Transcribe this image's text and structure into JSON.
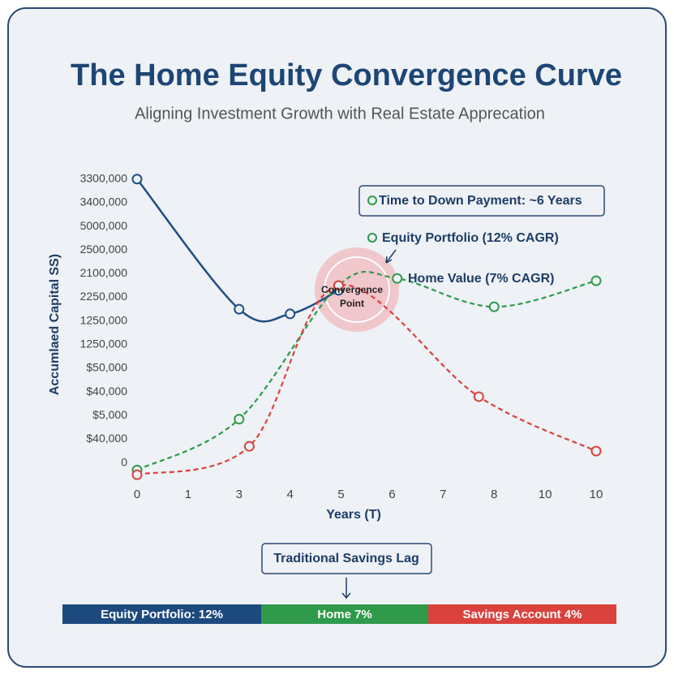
{
  "chart_data": {
    "type": "line",
    "title": "The Home Equity Convergence Curve",
    "subtitle": "Aligning Investment Growth with Real Estate Apprecation",
    "x_label": "Years (T)",
    "y_label": "Accumlaed Capital SS)",
    "xlim": [
      0,
      9
    ],
    "xticks": [
      0,
      1,
      {
        "value": 2,
        "label": "3"
      },
      {
        "value": 3,
        "label": "4"
      },
      {
        "value": 4,
        "label": "5"
      },
      {
        "value": 5,
        "label": "6"
      },
      {
        "value": 6,
        "label": "7"
      },
      {
        "value": 7,
        "label": "8"
      },
      {
        "value": 8,
        "label": "10"
      },
      {
        "value": 9,
        "label": "10"
      }
    ],
    "ylim": [
      -0.7,
      12.3
    ],
    "yticks": [
      0,
      {
        "value": 1,
        "label": "$40,000"
      },
      {
        "value": 2,
        "label": "$5,000"
      },
      {
        "value": 3,
        "label": "$40,000"
      },
      {
        "value": 4,
        "label": "$50,000"
      },
      {
        "value": 5,
        "label": "1250,000"
      },
      {
        "value": 6,
        "label": "1250,000"
      },
      {
        "value": 7,
        "label": "2250,000"
      },
      {
        "value": 8,
        "label": "2100,000"
      },
      {
        "value": 9,
        "label": "2500,000"
      },
      {
        "value": 10,
        "label": "5000,000"
      },
      {
        "value": 11,
        "label": "3400,000"
      },
      {
        "value": 12,
        "label": "3300,000"
      }
    ],
    "series": [
      {
        "color": "#1f4e85",
        "dashed": false,
        "x": [
          0,
          2,
          3,
          3.95
        ],
        "values": [
          12,
          6.5,
          6.3,
          7.3
        ]
      },
      {
        "color": "#2e9a4a",
        "dashed": true,
        "x": [
          0,
          2,
          3.95,
          5.1,
          7,
          9
        ],
        "values": [
          -0.3,
          1.85,
          7.5,
          7.8,
          6.6,
          7.7
        ]
      },
      {
        "color": "#d9423d",
        "dashed": true,
        "x": [
          0,
          2.2,
          3.95,
          6.7,
          9
        ],
        "values": [
          -0.5,
          0.7,
          7.5,
          2.8,
          0.5
        ]
      }
    ],
    "annotations": {
      "down_payment": "Time to Down Payment: ~6 Years",
      "equity": "Equity Portfolio (12% CAGR)",
      "home": "Home Value (7% CAGR)",
      "convergence": [
        "Convergence",
        "Point"
      ],
      "savings_lag": "Traditional Savings Lag"
    },
    "bottom_bar": [
      {
        "label": "Equity Portfolio: 12%",
        "color": "#1d4a7e"
      },
      {
        "label": "Home 7%",
        "color": "#2e9a4a"
      },
      {
        "label": "Savings Account 4%",
        "color": "#d9423d"
      }
    ]
  }
}
